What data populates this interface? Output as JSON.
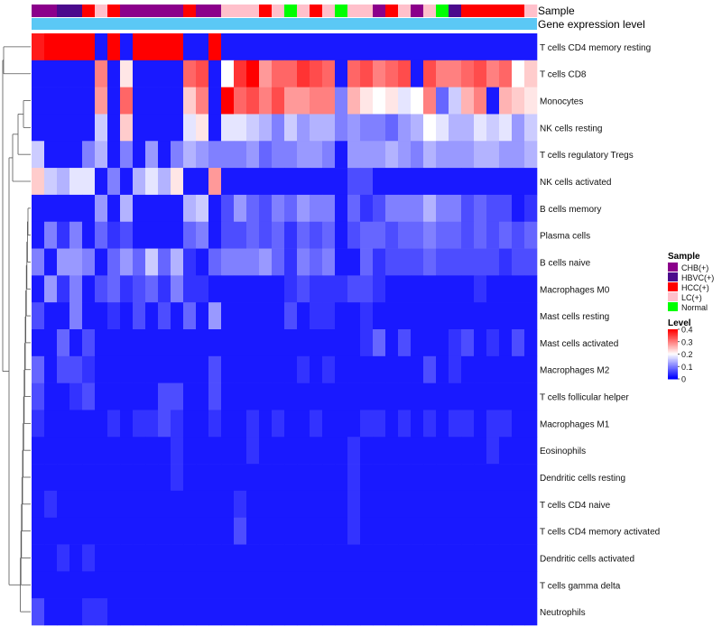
{
  "chart_data": {
    "type": "heatmap",
    "title": "",
    "annotation_labels": {
      "sample": "Sample",
      "gene_expression": "Gene expression level"
    },
    "sample_groups": [
      "CHB(+)",
      "HBVC(+)",
      "HCC(+)",
      "LC(+)",
      "Normal"
    ],
    "group_colors": {
      "CHB(+)": "#8b008b",
      "HBVC(+)": "#4b0a8c",
      "HCC(+)": "#ff0000",
      "LC(+)": "#ffc0cb",
      "Normal": "#00ff00"
    },
    "sample_annotation": [
      "CHB(+)",
      "CHB(+)",
      "HBVC(+)",
      "HBVC(+)",
      "HCC(+)",
      "LC(+)",
      "HCC(+)",
      "CHB(+)",
      "CHB(+)",
      "CHB(+)",
      "CHB(+)",
      "CHB(+)",
      "HCC(+)",
      "CHB(+)",
      "CHB(+)",
      "LC(+)",
      "LC(+)",
      "LC(+)",
      "HCC(+)",
      "LC(+)",
      "Normal",
      "LC(+)",
      "HCC(+)",
      "LC(+)",
      "Normal",
      "LC(+)",
      "LC(+)",
      "CHB(+)",
      "HCC(+)",
      "LC(+)",
      "CHB(+)",
      "LC(+)",
      "Normal",
      "HBVC(+)",
      "HCC(+)",
      "HCC(+)",
      "HCC(+)",
      "HCC(+)",
      "HCC(+)",
      "LC(+)"
    ],
    "gene_expression_color": "#5bc8f5",
    "rows": [
      "T cells CD4 memory resting",
      "T cells CD8",
      "Monocytes",
      "NK cells resting",
      "T cells regulatory  Tregs",
      "NK cells activated",
      "B cells memory",
      "Plasma cells",
      "B cells naive",
      "Macrophages M0",
      "Mast cells resting",
      "Mast cells activated",
      "Macrophages M2",
      "T cells follicular helper",
      "Macrophages M1",
      "Eosinophils",
      "Dendritic cells resting",
      "T cells CD4 naive",
      "T cells CD4 memory activated",
      "Dendritic cells activated",
      "T cells gamma delta",
      "Neutrophils"
    ],
    "values": [
      [
        0.38,
        0.4,
        0.4,
        0.4,
        0.4,
        0.02,
        0.4,
        0.02,
        0.4,
        0.4,
        0.4,
        0.4,
        0.02,
        0.02,
        0.4,
        0.02,
        0.02,
        0.02,
        0.02,
        0.02,
        0.02,
        0.02,
        0.02,
        0.02,
        0.02,
        0.02,
        0.02,
        0.02,
        0.02,
        0.02,
        0.02,
        0.02,
        0.02,
        0.02,
        0.02,
        0.02,
        0.02,
        0.02,
        0.02,
        0.02
      ],
      [
        0.02,
        0.02,
        0.02,
        0.02,
        0.02,
        0.3,
        0.02,
        0.22,
        0.02,
        0.02,
        0.02,
        0.02,
        0.32,
        0.34,
        0.02,
        0.2,
        0.36,
        0.4,
        0.28,
        0.32,
        0.32,
        0.36,
        0.34,
        0.32,
        0.02,
        0.32,
        0.34,
        0.3,
        0.32,
        0.34,
        0.02,
        0.34,
        0.3,
        0.3,
        0.32,
        0.34,
        0.3,
        0.32,
        0.2,
        0.24
      ],
      [
        0.02,
        0.02,
        0.02,
        0.02,
        0.02,
        0.28,
        0.02,
        0.32,
        0.02,
        0.02,
        0.02,
        0.02,
        0.24,
        0.3,
        0.02,
        0.4,
        0.32,
        0.34,
        0.3,
        0.34,
        0.28,
        0.28,
        0.3,
        0.3,
        0.1,
        0.26,
        0.22,
        0.2,
        0.22,
        0.18,
        0.2,
        0.3,
        0.08,
        0.16,
        0.26,
        0.3,
        0.02,
        0.26,
        0.24,
        0.22
      ],
      [
        0.02,
        0.02,
        0.02,
        0.02,
        0.02,
        0.16,
        0.02,
        0.24,
        0.02,
        0.02,
        0.02,
        0.02,
        0.18,
        0.22,
        0.02,
        0.18,
        0.18,
        0.16,
        0.14,
        0.1,
        0.16,
        0.12,
        0.14,
        0.14,
        0.1,
        0.12,
        0.1,
        0.1,
        0.08,
        0.12,
        0.14,
        0.2,
        0.18,
        0.14,
        0.14,
        0.18,
        0.16,
        0.18,
        0.12,
        0.16
      ],
      [
        0.16,
        0.02,
        0.02,
        0.02,
        0.1,
        0.14,
        0.02,
        0.1,
        0.02,
        0.12,
        0.02,
        0.1,
        0.14,
        0.12,
        0.1,
        0.1,
        0.1,
        0.12,
        0.08,
        0.1,
        0.1,
        0.12,
        0.12,
        0.1,
        0.02,
        0.12,
        0.12,
        0.12,
        0.14,
        0.12,
        0.1,
        0.14,
        0.12,
        0.12,
        0.12,
        0.14,
        0.14,
        0.12,
        0.12,
        0.14
      ],
      [
        0.24,
        0.16,
        0.14,
        0.18,
        0.18,
        0.02,
        0.1,
        0.02,
        0.14,
        0.18,
        0.14,
        0.22,
        0.02,
        0.02,
        0.28,
        0.02,
        0.02,
        0.02,
        0.02,
        0.02,
        0.02,
        0.02,
        0.02,
        0.02,
        0.02,
        0.06,
        0.06,
        0.02,
        0.02,
        0.02,
        0.02,
        0.02,
        0.02,
        0.02,
        0.02,
        0.02,
        0.02,
        0.02,
        0.02,
        0.02
      ],
      [
        0.02,
        0.02,
        0.02,
        0.02,
        0.02,
        0.12,
        0.02,
        0.14,
        0.02,
        0.02,
        0.02,
        0.02,
        0.14,
        0.16,
        0.02,
        0.06,
        0.12,
        0.08,
        0.06,
        0.1,
        0.08,
        0.12,
        0.1,
        0.1,
        0.02,
        0.08,
        0.04,
        0.06,
        0.1,
        0.1,
        0.1,
        0.14,
        0.1,
        0.1,
        0.06,
        0.08,
        0.06,
        0.06,
        0.02,
        0.04
      ],
      [
        0.02,
        0.1,
        0.04,
        0.1,
        0.02,
        0.08,
        0.04,
        0.06,
        0.02,
        0.02,
        0.02,
        0.02,
        0.08,
        0.1,
        0.02,
        0.06,
        0.06,
        0.08,
        0.06,
        0.08,
        0.04,
        0.08,
        0.06,
        0.08,
        0.02,
        0.06,
        0.08,
        0.08,
        0.06,
        0.08,
        0.08,
        0.1,
        0.08,
        0.08,
        0.06,
        0.08,
        0.06,
        0.08,
        0.06,
        0.08
      ],
      [
        0.1,
        0.02,
        0.12,
        0.12,
        0.1,
        0.02,
        0.08,
        0.12,
        0.08,
        0.16,
        0.08,
        0.14,
        0.04,
        0.02,
        0.08,
        0.1,
        0.1,
        0.1,
        0.12,
        0.08,
        0.04,
        0.1,
        0.08,
        0.1,
        0.02,
        0.02,
        0.08,
        0.04,
        0.06,
        0.06,
        0.06,
        0.08,
        0.06,
        0.06,
        0.06,
        0.06,
        0.06,
        0.04,
        0.06,
        0.06
      ],
      [
        0.02,
        0.12,
        0.04,
        0.1,
        0.02,
        0.06,
        0.08,
        0.04,
        0.06,
        0.08,
        0.04,
        0.1,
        0.04,
        0.04,
        0.02,
        0.02,
        0.02,
        0.02,
        0.02,
        0.02,
        0.04,
        0.06,
        0.04,
        0.04,
        0.04,
        0.06,
        0.06,
        0.04,
        0.02,
        0.02,
        0.02,
        0.02,
        0.02,
        0.02,
        0.02,
        0.04,
        0.02,
        0.02,
        0.02,
        0.02
      ],
      [
        0.06,
        0.02,
        0.02,
        0.1,
        0.02,
        0.02,
        0.04,
        0.02,
        0.06,
        0.02,
        0.06,
        0.02,
        0.08,
        0.02,
        0.12,
        0.02,
        0.02,
        0.02,
        0.02,
        0.02,
        0.06,
        0.02,
        0.04,
        0.04,
        0.02,
        0.02,
        0.04,
        0.02,
        0.02,
        0.02,
        0.02,
        0.02,
        0.02,
        0.02,
        0.02,
        0.02,
        0.02,
        0.02,
        0.02,
        0.02
      ],
      [
        0.02,
        0.02,
        0.08,
        0.02,
        0.06,
        0.02,
        0.02,
        0.02,
        0.02,
        0.02,
        0.02,
        0.02,
        0.02,
        0.02,
        0.02,
        0.02,
        0.02,
        0.02,
        0.02,
        0.02,
        0.02,
        0.02,
        0.02,
        0.02,
        0.02,
        0.02,
        0.04,
        0.08,
        0.02,
        0.06,
        0.02,
        0.02,
        0.02,
        0.04,
        0.06,
        0.02,
        0.04,
        0.02,
        0.06,
        0.02
      ],
      [
        0.08,
        0.02,
        0.06,
        0.06,
        0.04,
        0.02,
        0.02,
        0.02,
        0.02,
        0.02,
        0.02,
        0.02,
        0.02,
        0.02,
        0.06,
        0.02,
        0.02,
        0.02,
        0.02,
        0.02,
        0.02,
        0.04,
        0.02,
        0.04,
        0.02,
        0.02,
        0.02,
        0.02,
        0.02,
        0.02,
        0.02,
        0.06,
        0.02,
        0.04,
        0.02,
        0.02,
        0.02,
        0.02,
        0.02,
        0.02
      ],
      [
        0.06,
        0.02,
        0.02,
        0.04,
        0.06,
        0.02,
        0.02,
        0.02,
        0.02,
        0.02,
        0.06,
        0.06,
        0.02,
        0.02,
        0.06,
        0.02,
        0.02,
        0.02,
        0.02,
        0.02,
        0.02,
        0.02,
        0.02,
        0.02,
        0.02,
        0.02,
        0.02,
        0.02,
        0.02,
        0.02,
        0.02,
        0.02,
        0.02,
        0.02,
        0.02,
        0.02,
        0.02,
        0.02,
        0.02,
        0.02
      ],
      [
        0.04,
        0.02,
        0.02,
        0.02,
        0.02,
        0.02,
        0.04,
        0.02,
        0.04,
        0.04,
        0.06,
        0.04,
        0.02,
        0.02,
        0.04,
        0.02,
        0.02,
        0.04,
        0.02,
        0.04,
        0.02,
        0.02,
        0.04,
        0.02,
        0.02,
        0.02,
        0.04,
        0.04,
        0.02,
        0.04,
        0.02,
        0.04,
        0.02,
        0.04,
        0.04,
        0.02,
        0.04,
        0.04,
        0.02,
        0.02
      ],
      [
        0.02,
        0.02,
        0.02,
        0.02,
        0.02,
        0.02,
        0.02,
        0.02,
        0.02,
        0.02,
        0.02,
        0.04,
        0.02,
        0.02,
        0.02,
        0.02,
        0.02,
        0.04,
        0.02,
        0.02,
        0.02,
        0.02,
        0.02,
        0.02,
        0.02,
        0.04,
        0.02,
        0.02,
        0.02,
        0.02,
        0.02,
        0.02,
        0.02,
        0.02,
        0.02,
        0.02,
        0.04,
        0.02,
        0.02,
        0.02
      ],
      [
        0.02,
        0.02,
        0.02,
        0.02,
        0.02,
        0.02,
        0.02,
        0.02,
        0.02,
        0.02,
        0.02,
        0.04,
        0.02,
        0.02,
        0.02,
        0.02,
        0.02,
        0.02,
        0.02,
        0.02,
        0.02,
        0.02,
        0.02,
        0.02,
        0.02,
        0.04,
        0.02,
        0.02,
        0.02,
        0.02,
        0.02,
        0.02,
        0.02,
        0.02,
        0.02,
        0.02,
        0.02,
        0.02,
        0.02,
        0.02
      ],
      [
        0.02,
        0.04,
        0.02,
        0.02,
        0.02,
        0.02,
        0.02,
        0.02,
        0.02,
        0.02,
        0.02,
        0.02,
        0.02,
        0.02,
        0.02,
        0.02,
        0.04,
        0.02,
        0.02,
        0.02,
        0.02,
        0.02,
        0.02,
        0.02,
        0.02,
        0.04,
        0.02,
        0.02,
        0.02,
        0.02,
        0.02,
        0.02,
        0.02,
        0.02,
        0.02,
        0.02,
        0.02,
        0.02,
        0.02,
        0.02
      ],
      [
        0.02,
        0.02,
        0.02,
        0.02,
        0.02,
        0.02,
        0.02,
        0.02,
        0.02,
        0.02,
        0.02,
        0.02,
        0.02,
        0.02,
        0.02,
        0.02,
        0.06,
        0.02,
        0.02,
        0.02,
        0.02,
        0.02,
        0.02,
        0.02,
        0.02,
        0.04,
        0.02,
        0.02,
        0.02,
        0.02,
        0.02,
        0.02,
        0.02,
        0.02,
        0.02,
        0.02,
        0.02,
        0.02,
        0.02,
        0.02
      ],
      [
        0.02,
        0.02,
        0.04,
        0.02,
        0.04,
        0.02,
        0.02,
        0.02,
        0.02,
        0.02,
        0.02,
        0.02,
        0.02,
        0.02,
        0.02,
        0.02,
        0.02,
        0.02,
        0.02,
        0.02,
        0.02,
        0.02,
        0.02,
        0.02,
        0.02,
        0.02,
        0.02,
        0.02,
        0.02,
        0.02,
        0.02,
        0.02,
        0.02,
        0.02,
        0.02,
        0.02,
        0.02,
        0.02,
        0.02,
        0.02
      ],
      [
        0.02,
        0.02,
        0.02,
        0.02,
        0.02,
        0.02,
        0.02,
        0.02,
        0.02,
        0.02,
        0.02,
        0.02,
        0.02,
        0.02,
        0.02,
        0.02,
        0.02,
        0.02,
        0.02,
        0.02,
        0.02,
        0.02,
        0.02,
        0.02,
        0.02,
        0.02,
        0.02,
        0.02,
        0.02,
        0.02,
        0.02,
        0.02,
        0.02,
        0.02,
        0.02,
        0.02,
        0.02,
        0.02,
        0.02,
        0.02
      ],
      [
        0.06,
        0.02,
        0.02,
        0.02,
        0.04,
        0.04,
        0.02,
        0.02,
        0.02,
        0.02,
        0.02,
        0.02,
        0.02,
        0.02,
        0.02,
        0.02,
        0.02,
        0.02,
        0.02,
        0.02,
        0.02,
        0.02,
        0.02,
        0.02,
        0.02,
        0.02,
        0.02,
        0.02,
        0.02,
        0.02,
        0.02,
        0.02,
        0.02,
        0.02,
        0.02,
        0.02,
        0.02,
        0.02,
        0.02,
        0.02
      ]
    ],
    "color_scale": {
      "low": "#0000ff",
      "mid": "#ffffff",
      "high": "#ff0000",
      "min": 0,
      "mid_value": 0.2,
      "max": 0.4
    },
    "legend": {
      "sample_title": "Sample",
      "level_title": "Level",
      "level_ticks": [
        "0.4",
        "0.3",
        "0.2",
        "0.1",
        "0"
      ],
      "level_tick_values": [
        0.4,
        0.3,
        0.2,
        0.1,
        0
      ],
      "placement": "right"
    },
    "dendrogram": "row clustering shown on left"
  }
}
